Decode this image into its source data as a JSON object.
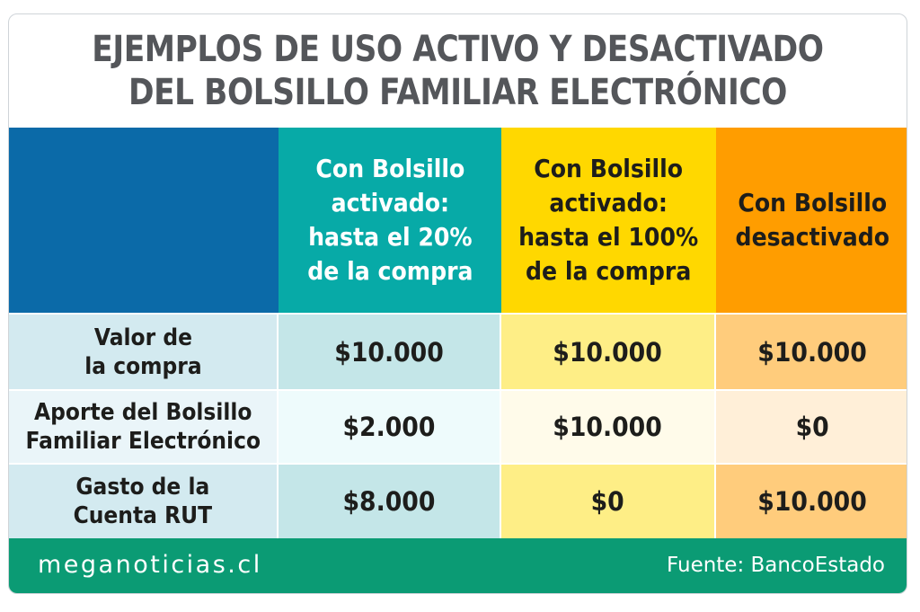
{
  "title": "EJEMPLOS DE USO ACTIVO Y DESACTIVADO\nDEL BOLSILLO FAMILIAR ELECTRÓNICO",
  "colors": {
    "title_text": "#54565a",
    "corner_blue": "#0b6aa8",
    "teal_header": "#07aaa7",
    "yellow_header": "#ffd800",
    "orange_header": "#ff9d00",
    "label_light": "#d3eaf0",
    "label_lighter": "#eaf5f9",
    "teal_light": "#c4e6e8",
    "teal_lighter": "#eefbfc",
    "yellow_light": "#feee86",
    "yellow_lighter": "#fffbea",
    "orange_light": "#ffcc7c",
    "orange_lighter": "#ffefd8",
    "footer_green": "#0b9b74"
  },
  "chart_data": {
    "type": "table",
    "columns": [
      "",
      "Con Bolsillo\nactivado:\nhasta el 20%\nde la compra",
      "Con Bolsillo\nactivado:\nhasta el 100%\nde la compra",
      "Con Bolsillo\ndesactivado"
    ],
    "rows": [
      {
        "label": "Valor de\nla compra",
        "values": [
          "$10.000",
          "$10.000",
          "$10.000"
        ]
      },
      {
        "label": "Aporte del Bolsillo\nFamiliar Electrónico",
        "values": [
          "$2.000",
          "$10.000",
          "$0"
        ]
      },
      {
        "label": "Gasto de la\nCuenta RUT",
        "values": [
          "$8.000",
          "$0",
          "$10.000"
        ]
      }
    ]
  },
  "footer": {
    "site": "meganoticias.cl",
    "source": "Fuente: BancoEstado"
  }
}
